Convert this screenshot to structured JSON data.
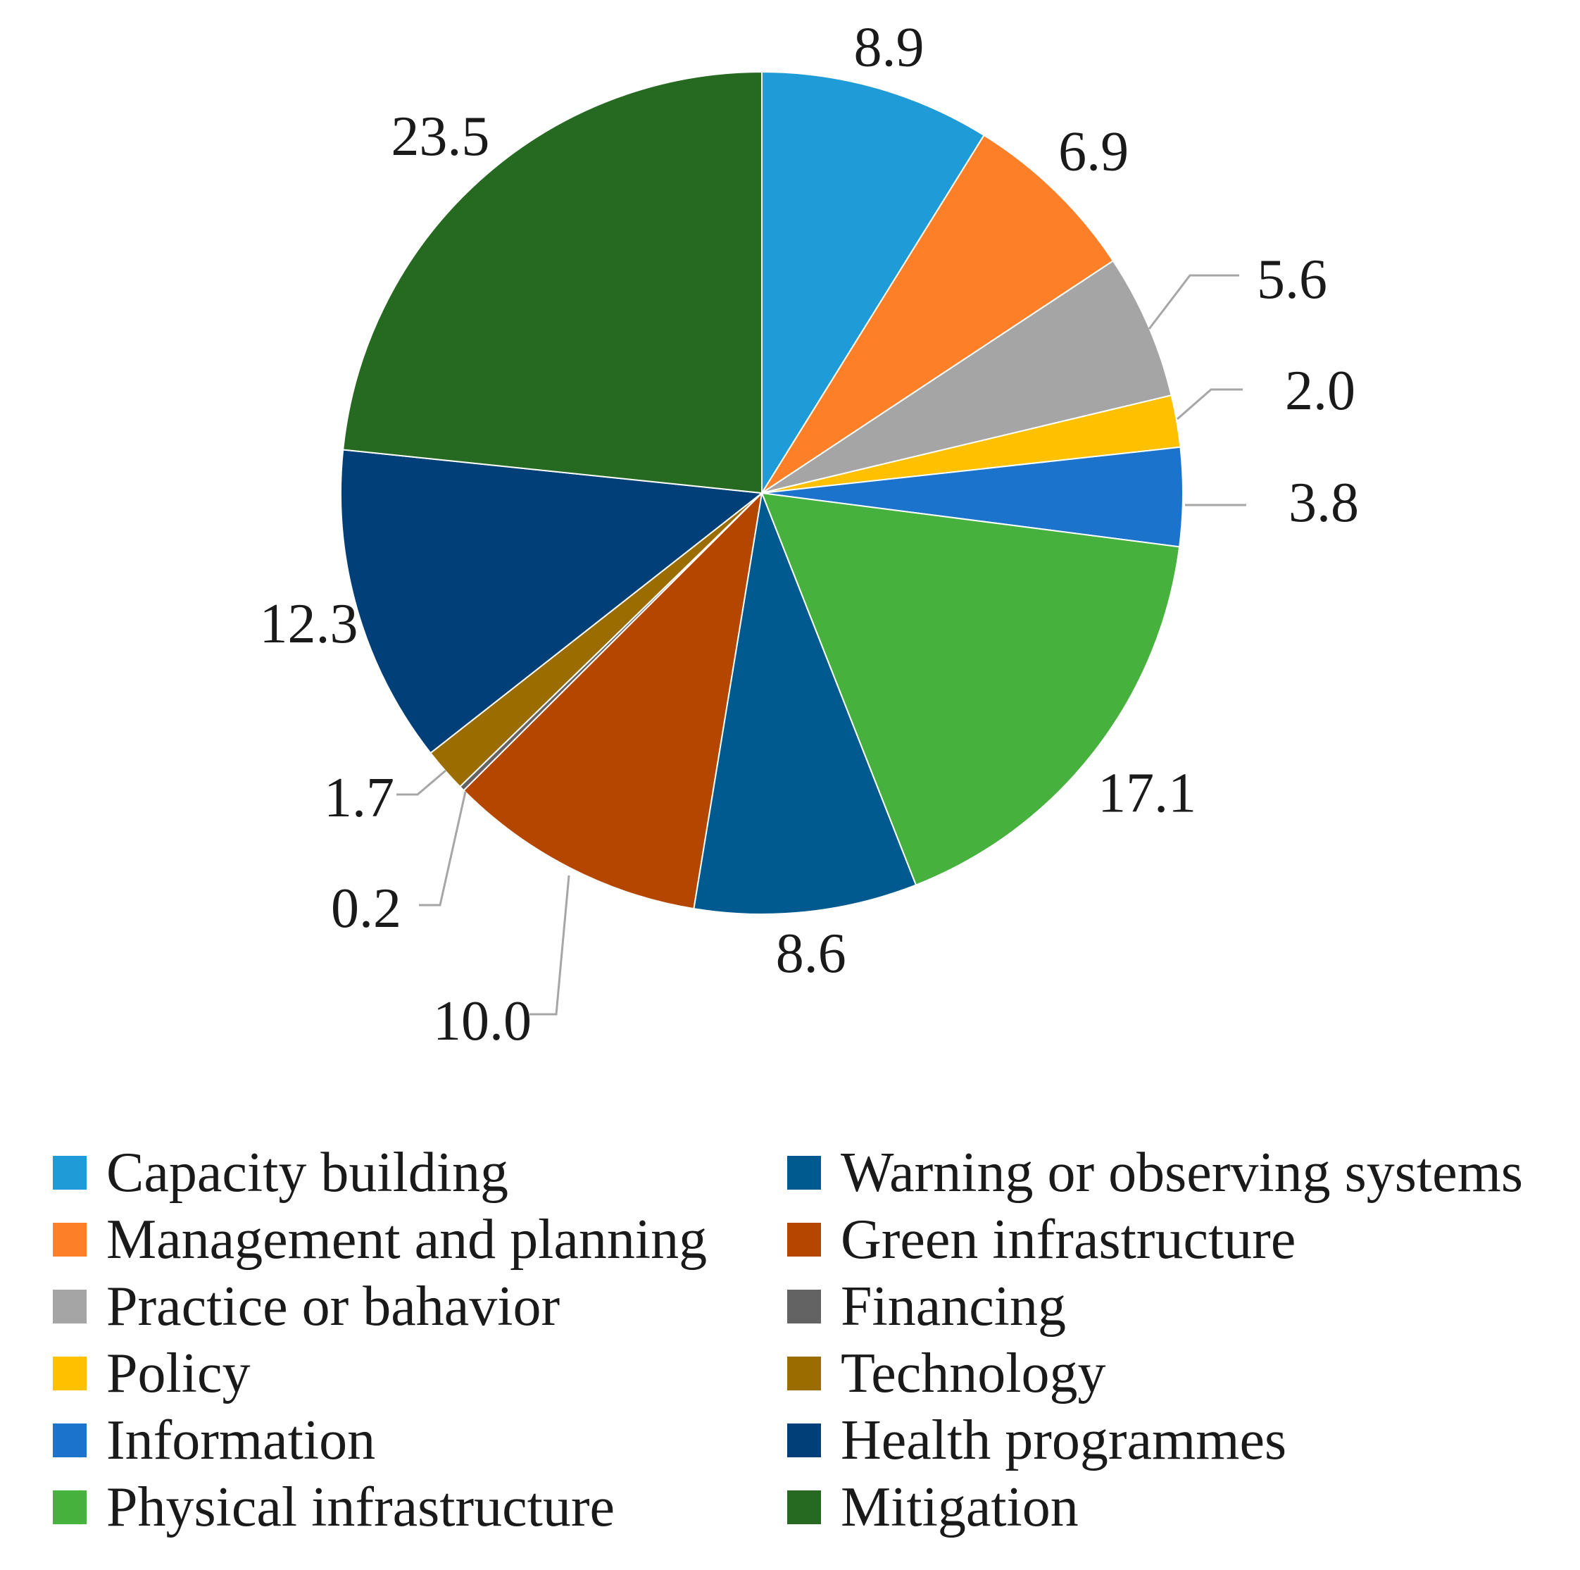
{
  "chart_data": {
    "type": "pie",
    "title": "",
    "start_angle_deg": 0,
    "direction": "clockwise",
    "legend_position": "bottom",
    "slices": [
      {
        "label": "Capacity building",
        "value": 8.9,
        "value_label": "8.9",
        "color": "#1F9BD7"
      },
      {
        "label": "Management and planning",
        "value": 6.9,
        "value_label": "6.9",
        "color": "#FD7F28"
      },
      {
        "label": "Practice or bahavior",
        "value": 5.6,
        "value_label": "5.6",
        "color": "#A5A5A5"
      },
      {
        "label": "Policy",
        "value": 2.0,
        "value_label": "2.0",
        "color": "#FFC000"
      },
      {
        "label": "Information",
        "value": 3.8,
        "value_label": "3.8",
        "color": "#1B73CC"
      },
      {
        "label": "Physical infrastructure",
        "value": 17.1,
        "value_label": "17.1",
        "color": "#46B13C"
      },
      {
        "label": "Warning or observing systems",
        "value": 8.6,
        "value_label": "8.6",
        "color": "#005A8F"
      },
      {
        "label": "Green infrastructure",
        "value": 10.0,
        "value_label": "10.0",
        "color": "#B54600"
      },
      {
        "label": "Financing",
        "value": 0.2,
        "value_label": "0.2",
        "color": "#636363"
      },
      {
        "label": "Technology",
        "value": 1.7,
        "value_label": "1.7",
        "color": "#9B6C00"
      },
      {
        "label": "Health programmes",
        "value": 12.3,
        "value_label": "12.3",
        "color": "#003F78"
      },
      {
        "label": "Mitigation",
        "value": 23.5,
        "value_label": "23.5",
        "color": "#266A22"
      }
    ]
  }
}
